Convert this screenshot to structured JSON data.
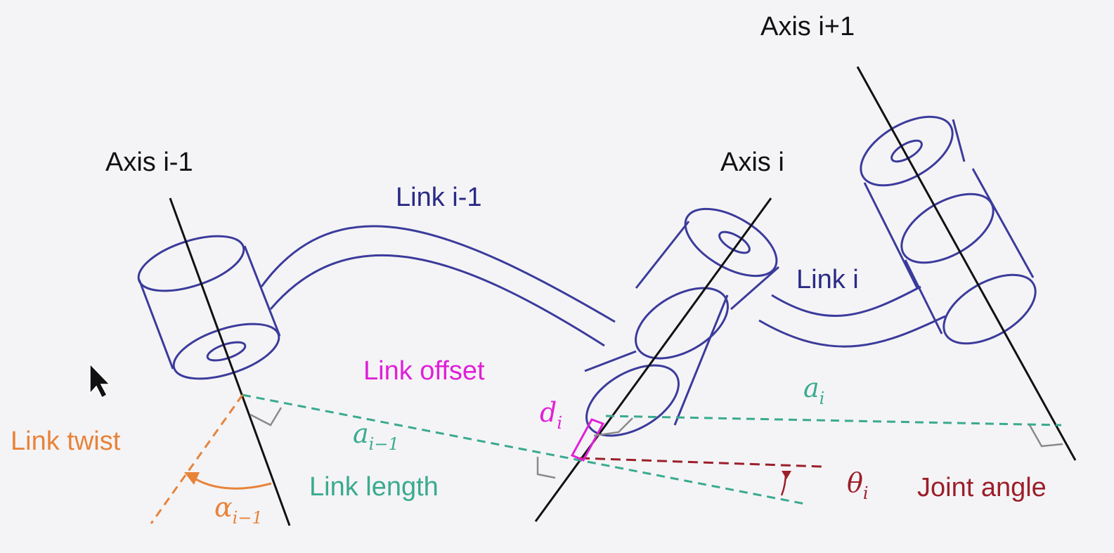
{
  "colors": {
    "axis": "#111111",
    "link": "#3b3b9c",
    "link_label": "#2a2a86",
    "twist": "#e8833a",
    "length": "#3aaa8f",
    "offset": "#e020d8",
    "angle": "#9c1f2a",
    "perp_marker": "#8a8a8a",
    "background": "#f4f4f6"
  },
  "labels": {
    "axis_prev": "Axis i-1",
    "axis_curr": "Axis i",
    "axis_next": "Axis i+1",
    "link_prev": "Link i-1",
    "link_curr": "Link i",
    "link_offset": "Link offset",
    "link_twist": "Link twist",
    "link_length": "Link length",
    "joint_angle": "Joint angle"
  },
  "symbols": {
    "a_prev": {
      "base": "a",
      "sub": "i−1"
    },
    "a_curr": {
      "base": "a",
      "sub": "i"
    },
    "d_curr": {
      "base": "d",
      "sub": "i"
    },
    "alpha_prev": {
      "base": "α",
      "sub": "i−1"
    },
    "theta_curr": {
      "base": "θ",
      "sub": "i"
    }
  },
  "icons": {
    "cursor": "mouse-pointer-icon"
  }
}
